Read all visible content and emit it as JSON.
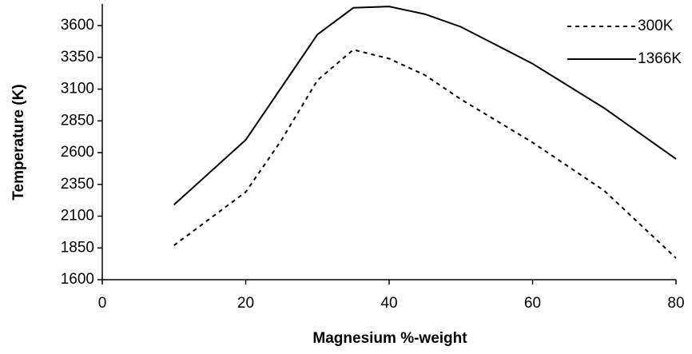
{
  "chart_data": {
    "type": "line",
    "x_label": "Magnesium %-weight",
    "y_label": "Temperature (K)",
    "xlim": [
      0,
      80
    ],
    "xticks": [
      0,
      20,
      40,
      60,
      80
    ],
    "ylim": [
      1600,
      3770
    ],
    "yticks": [
      1600,
      1850,
      2100,
      2350,
      2600,
      2850,
      3100,
      3350,
      3600
    ],
    "legend": "upper right",
    "series": [
      {
        "name": "300K",
        "color": "#000000",
        "dash": true,
        "x": [
          10,
          20,
          25,
          30,
          35,
          40,
          45,
          50,
          60,
          70,
          80
        ],
        "values": [
          1870,
          2290,
          2700,
          3170,
          3410,
          3340,
          3210,
          3020,
          2680,
          2300,
          1770
        ]
      },
      {
        "name": "1366K",
        "color": "#000000",
        "dash": false,
        "x": [
          10,
          20,
          30,
          35,
          40,
          45,
          50,
          60,
          70,
          80
        ],
        "values": [
          2190,
          2700,
          3530,
          3740,
          3750,
          3690,
          3590,
          3300,
          2950,
          2550
        ]
      }
    ]
  }
}
